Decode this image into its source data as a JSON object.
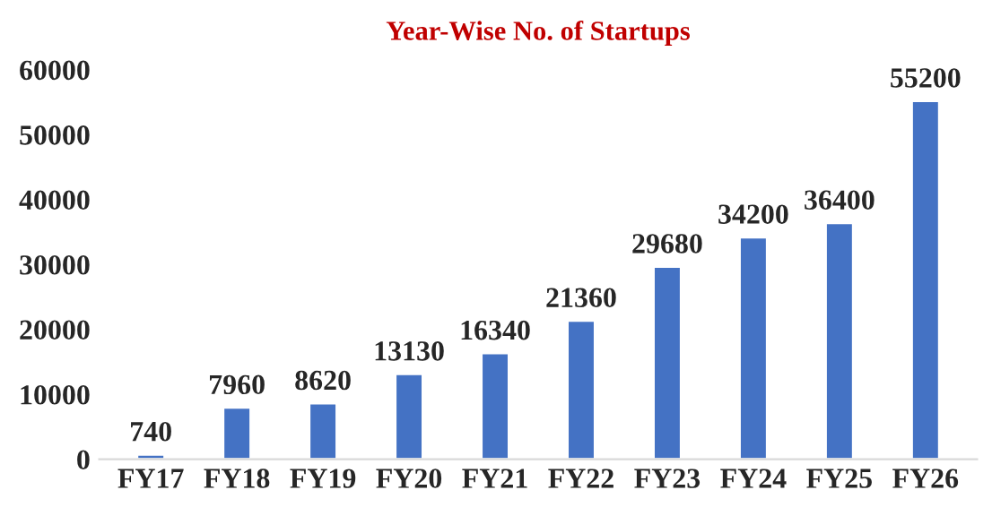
{
  "chart_data": {
    "type": "bar",
    "title": "Year-Wise No. of Startups",
    "categories": [
      "FY17",
      "FY18",
      "FY19",
      "FY20",
      "FY21",
      "FY22",
      "FY23",
      "FY24",
      "FY25",
      "FY26"
    ],
    "values": [
      740,
      7960,
      8620,
      13130,
      16340,
      21360,
      29680,
      34200,
      36400,
      55200
    ],
    "color": "#4472c4",
    "ylim": [
      0,
      60000
    ],
    "yticks": [
      0,
      10000,
      20000,
      30000,
      40000,
      50000,
      60000
    ],
    "grid": false,
    "data_labels": true
  }
}
